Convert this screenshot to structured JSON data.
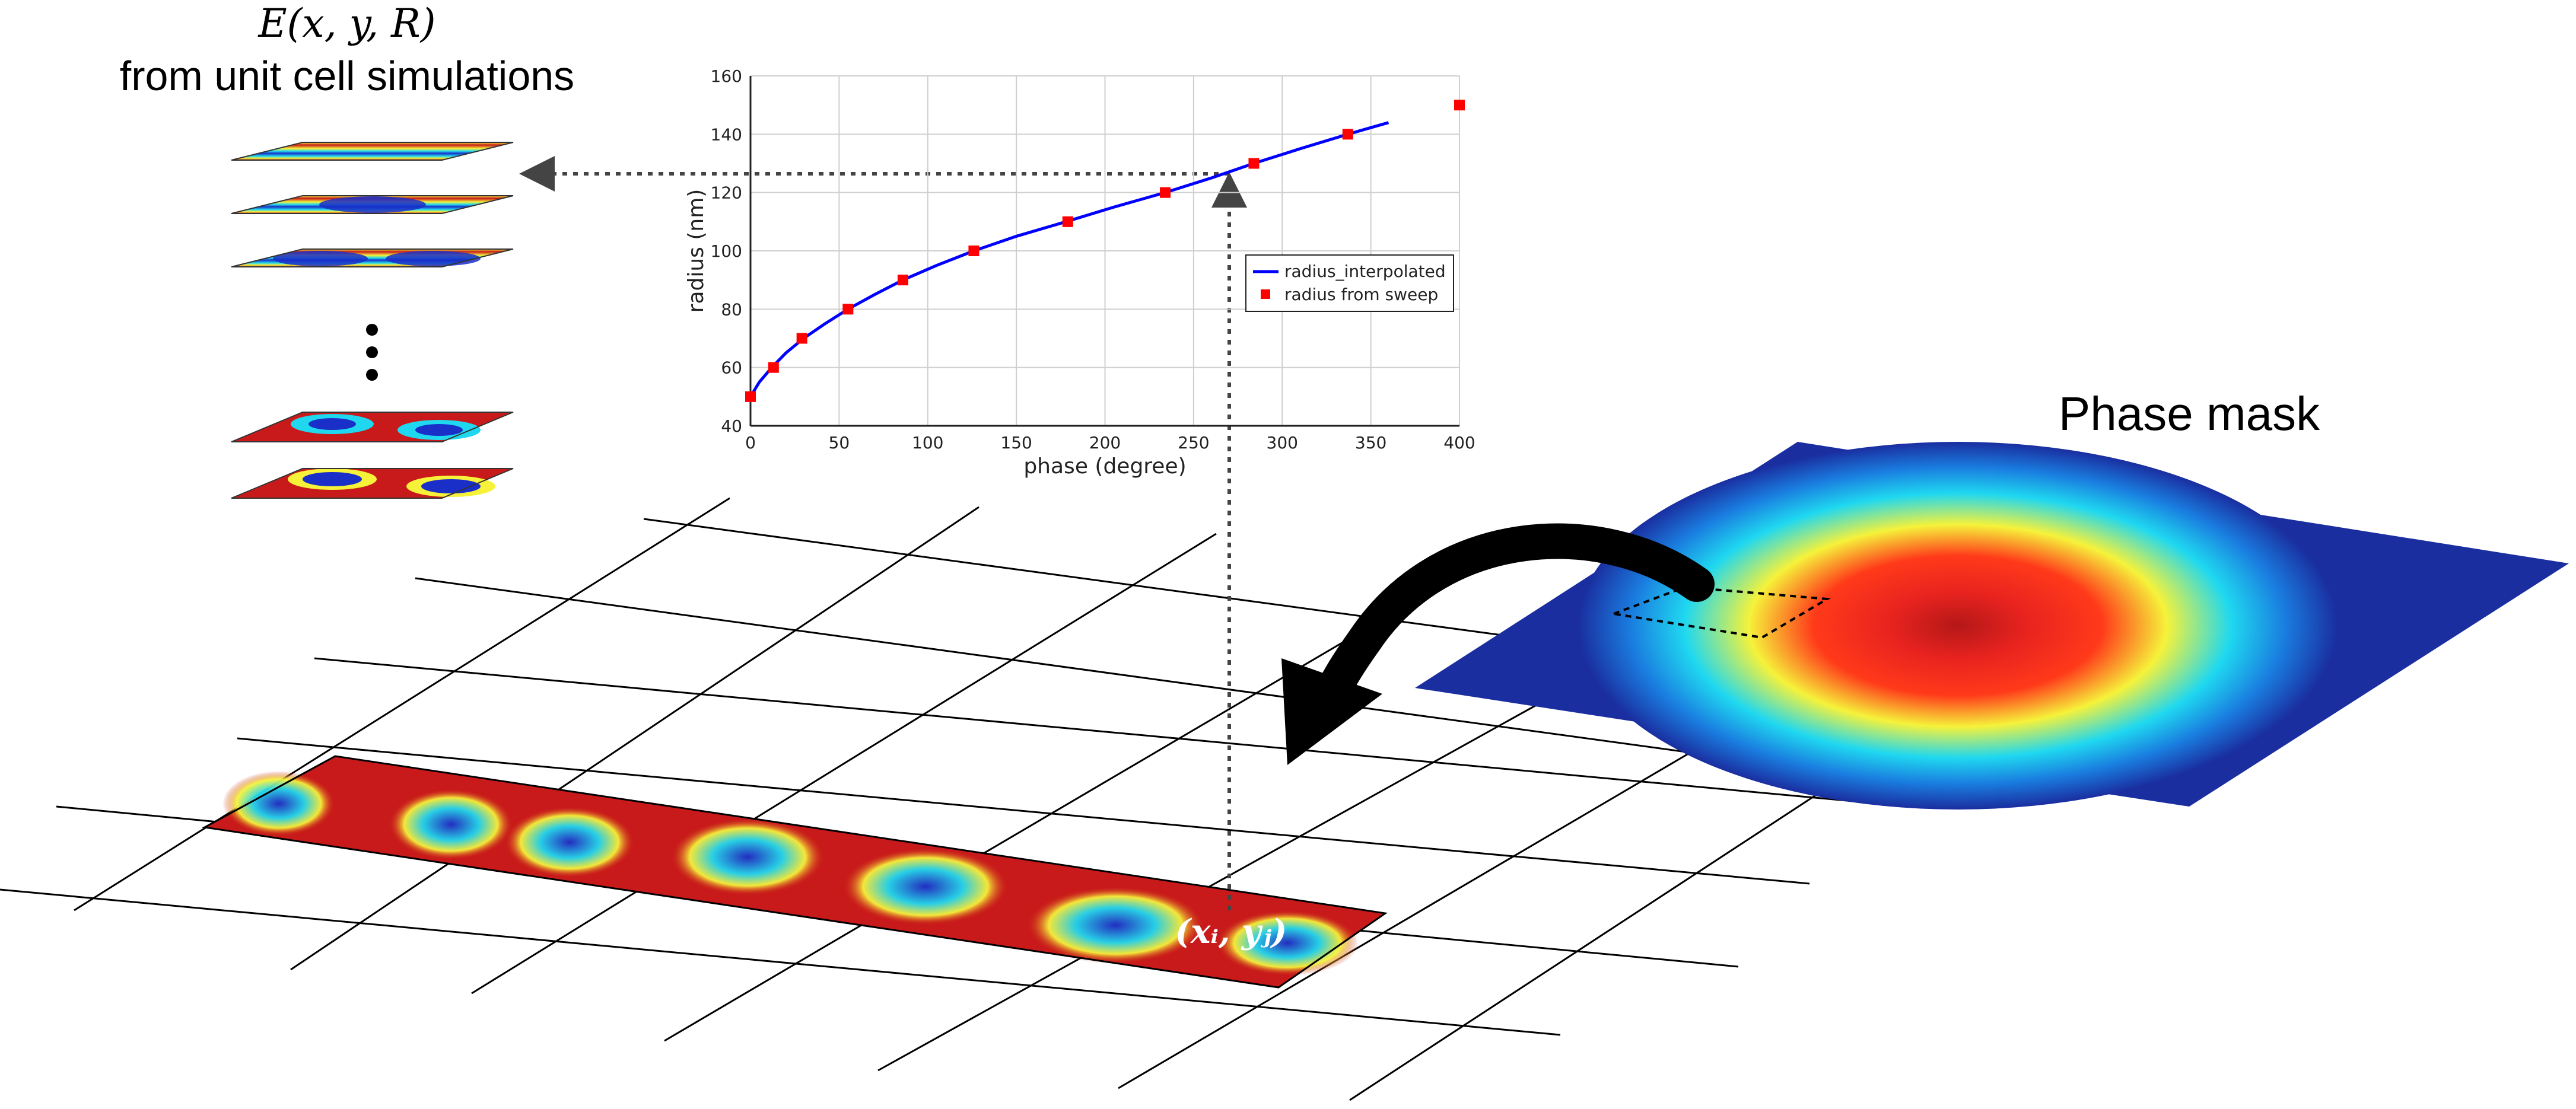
{
  "field_title": "E(x, y, R)",
  "field_subtitle": "from unit cell simulations",
  "phase_mask_label": "Phase mask",
  "coordinate_label": "(xᵢ, yⱼ)",
  "colors": {
    "red": "#c81a1a",
    "blue": "#1a2ec8",
    "cyan": "#1fd8f0",
    "yellow": "#f6f23a",
    "line": "#0000ff",
    "marker": "#ff0000"
  },
  "chart_data": {
    "type": "line",
    "xlabel": "phase (degree)",
    "ylabel": "radius (nm)",
    "xlim": [
      0,
      400
    ],
    "ylim": [
      40,
      160
    ],
    "xticks": [
      0,
      50,
      100,
      150,
      200,
      250,
      300,
      350,
      400
    ],
    "yticks": [
      40,
      60,
      80,
      100,
      120,
      140,
      160
    ],
    "grid": true,
    "legend_position": "right",
    "series": [
      {
        "name": "radius_interpolated",
        "kind": "line",
        "x": [
          0,
          5,
          12,
          20,
          30,
          42,
          55,
          70,
          86,
          105,
          126,
          150,
          178,
          205,
          234,
          260,
          284,
          310,
          337,
          360
        ],
        "y": [
          50,
          55,
          60,
          65,
          70,
          75,
          80,
          85,
          90,
          95,
          100,
          105,
          110,
          115,
          120,
          125,
          130,
          135,
          140,
          144
        ]
      },
      {
        "name": "radius from sweep",
        "kind": "markers",
        "x": [
          0,
          13,
          29,
          55,
          86,
          126,
          179,
          234,
          284,
          337,
          400
        ],
        "y": [
          50,
          60,
          70,
          80,
          90,
          100,
          110,
          120,
          130,
          140,
          150
        ]
      }
    ]
  }
}
